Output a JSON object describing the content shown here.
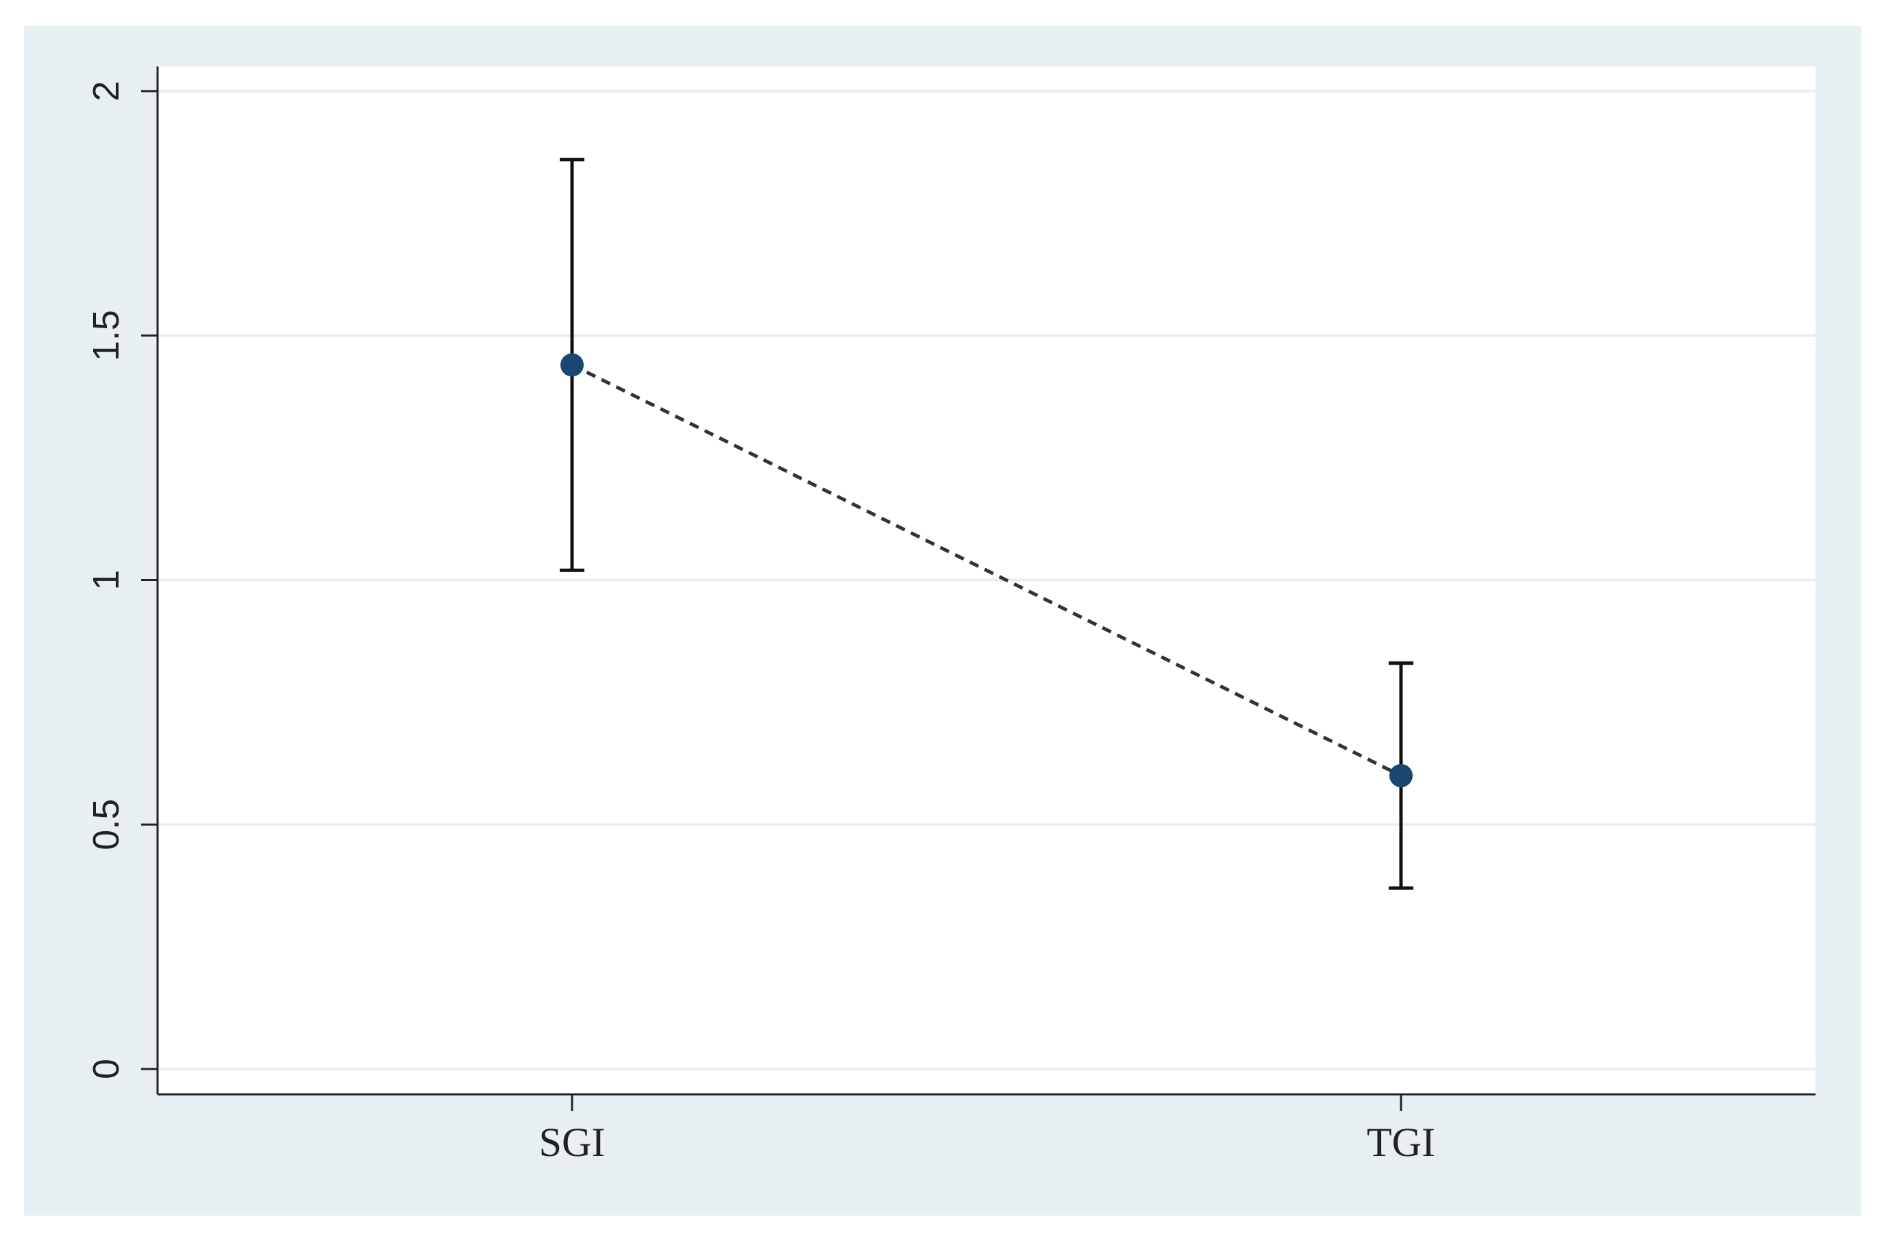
{
  "chart_data": {
    "type": "scatter",
    "title": "",
    "xlabel": "",
    "ylabel": "",
    "categories": [
      "SGI",
      "TGI"
    ],
    "points": [
      {
        "category": "SGI",
        "estimate": 1.44,
        "ci_low": 1.02,
        "ci_high": 1.86
      },
      {
        "category": "TGI",
        "estimate": 0.6,
        "ci_low": 0.37,
        "ci_high": 0.83
      }
    ],
    "connector": "dashed line between point estimates",
    "ylim": [
      0,
      2
    ],
    "yticks": [
      0,
      0.5,
      1,
      1.5,
      2
    ],
    "ytick_labels": [
      "0",
      "0.5",
      "1",
      "1.5",
      "2"
    ],
    "ytick_label_orientation": "rotated",
    "grid": "horizontal gridlines at y ticks",
    "legend": "none",
    "colors": {
      "outer_background": "#e8eff2",
      "plot_background": "#ffffff",
      "gridline": "#e9eef1",
      "axis": "#222222",
      "marker": "#1a476f",
      "error_bar": "#111111",
      "connector": "#333333"
    }
  }
}
